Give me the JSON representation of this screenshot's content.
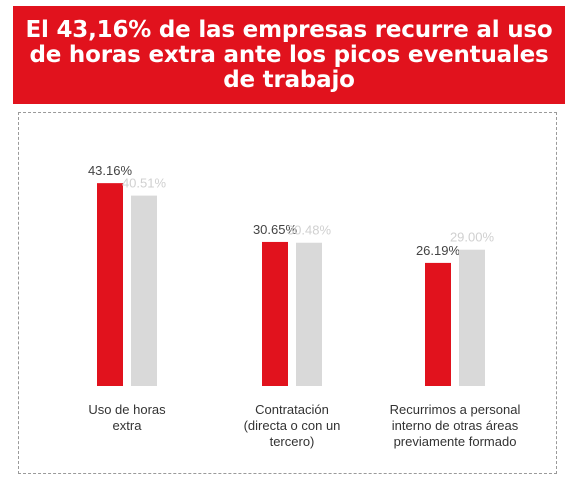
{
  "title": {
    "lines": [
      "El 43,16% de las empresas recurre al uso",
      "de horas extra ante los picos eventuales",
      "de trabajo"
    ]
  },
  "colors": {
    "banner": "#e1121d",
    "series_primary": "#e1121d",
    "series_secondary": "#d9d9d9",
    "label_primary": "#444444",
    "label_secondary": "#d0d0d0"
  },
  "chart_data": {
    "type": "bar",
    "categories": [
      [
        "Uso de horas",
        "extra"
      ],
      [
        "Contratación",
        "(directa o con un",
        "tercero)"
      ],
      [
        "Recurrimos a personal",
        "interno de otras áreas",
        "previamente formado"
      ]
    ],
    "series": [
      {
        "values": [
          43.16,
          30.65,
          26.19
        ],
        "labels": [
          "43.16%",
          "30.65%",
          "26.19%"
        ]
      },
      {
        "values": [
          40.51,
          30.48,
          29.0
        ],
        "labels": [
          "40.51%",
          "30.48%",
          "29.00%"
        ]
      }
    ],
    "xlabel": "",
    "ylabel": "",
    "grid": false,
    "legend": "none"
  }
}
